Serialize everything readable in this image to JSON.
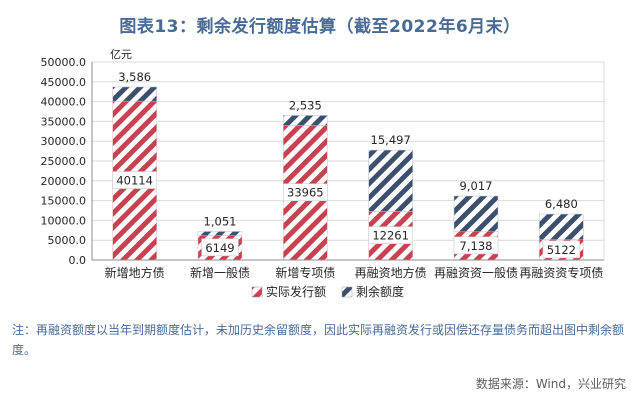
{
  "title": "图表13：剩余发行额度估算（截至2022年6月末）",
  "note": "注：再融资额度以当年到期额度估计，未加历史余留额度，因此实际再融资发行或因偿还存量债务而超出图中剩余额度。",
  "source": "数据来源：Wind，兴业研究",
  "colors": {
    "issued": "#c8414f",
    "remaining": "#3d4f6e",
    "grid": "#d9d9d9",
    "text": "#262626"
  },
  "chart_data": {
    "type": "bar",
    "stacked": true,
    "unit_label": "亿元",
    "categories": [
      "新增地方债",
      "新增一般债",
      "新增专项债",
      "再融资地方债",
      "再融资资一般债",
      "再融资资专项债"
    ],
    "series": [
      {
        "name": "实际发行额",
        "values": [
          40114,
          6149,
          33965,
          12261,
          7138,
          5122
        ],
        "labels": [
          "40114",
          "6149",
          "33965",
          "12261",
          "7,138",
          "5122"
        ],
        "pattern": "diagonal-hatch"
      },
      {
        "name": "剩余额度",
        "values": [
          3586,
          1051,
          2535,
          15497,
          9017,
          6480
        ],
        "labels": [
          "3,586",
          "1,051",
          "2,535",
          "15,497",
          "9,017",
          "6,480"
        ],
        "pattern": "diagonal-hatch"
      }
    ],
    "yticks": [
      "0.0",
      "5000.0",
      "10000.0",
      "15000.0",
      "20000.0",
      "25000.0",
      "30000.0",
      "35000.0",
      "40000.0",
      "45000.0",
      "50000.0"
    ],
    "ylim": [
      0,
      50000
    ],
    "grid": true,
    "legend_position": "bottom"
  }
}
